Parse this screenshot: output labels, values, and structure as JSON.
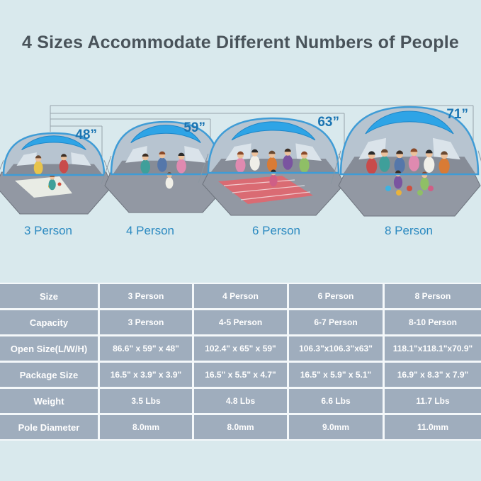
{
  "title": "4 Sizes Accommodate Different Numbers of People",
  "colors": {
    "background": "#d9e9ed",
    "title_text": "#49535a",
    "measure_blue": "#1a74b2",
    "size_label_blue": "#2c8ac1",
    "measure_line": "#97a2ab",
    "table_cell_bg": "#9fadbd",
    "table_text": "#ffffff",
    "table_gap": "#f4f8fa",
    "tent_canopy_blue": "#2ea4e6",
    "tent_frame_blue": "#3f9cd6",
    "tent_back_wall": "#b7c4d0",
    "tent_window": "#dae3ea",
    "tent_inner_floor": "#868c97",
    "tent_mat_gray": "#9298a3"
  },
  "tents": [
    {
      "size_label": "3 Person",
      "height_label": "48”",
      "people": 3
    },
    {
      "size_label": "4 Person",
      "height_label": "59”",
      "people": 4
    },
    {
      "size_label": "6 Person",
      "height_label": "63”",
      "people": 6
    },
    {
      "size_label": "8 Person",
      "height_label": "71”",
      "people": 8
    }
  ],
  "table": {
    "rows": [
      {
        "header": "Size",
        "values": [
          "3 Person",
          "4 Person",
          "6 Person",
          "8 Person"
        ]
      },
      {
        "header": "Capacity",
        "values": [
          "3 Person",
          "4-5 Person",
          "6-7 Person",
          "8-10 Person"
        ]
      },
      {
        "header": "Open Size(L/W/H)",
        "values": [
          "86.6\" x 59\" x 48\"",
          "102.4\" x 65\" x 59\"",
          "106.3\"x106.3\"x63\"",
          "118.1\"x118.1\"x70.9\""
        ]
      },
      {
        "header": "Package Size",
        "values": [
          "16.5\" x 3.9\" x 3.9\"",
          "16.5\" x 5.5\" x 4.7\"",
          "16.5\" x 5.9\" x 5.1\"",
          "16.9\" x 8.3\" x 7.9\""
        ]
      },
      {
        "header": "Weight",
        "values": [
          "3.5 Lbs",
          "4.8 Lbs",
          "6.6 Lbs",
          "11.7 Lbs"
        ]
      },
      {
        "header": "Pole Diameter",
        "values": [
          "8.0mm",
          "8.0mm",
          "9.0mm",
          "11.0mm"
        ]
      }
    ]
  }
}
